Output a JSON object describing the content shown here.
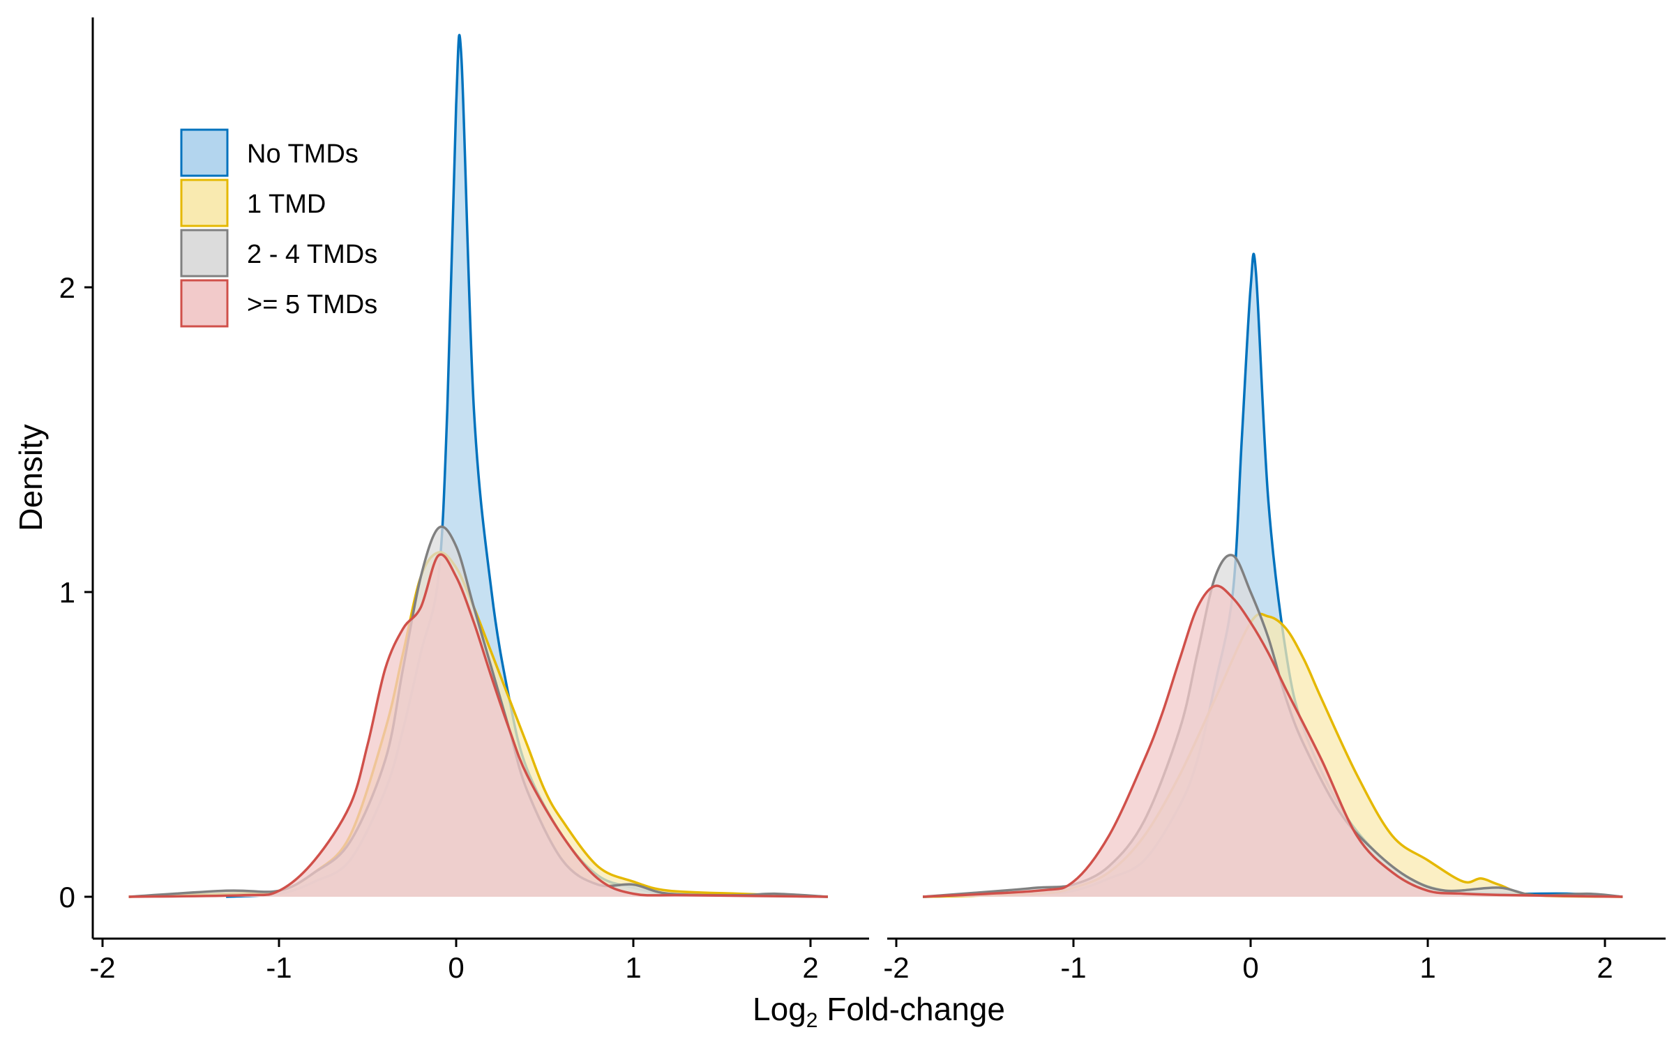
{
  "chart_data": [
    {
      "type": "area",
      "panel": "left",
      "xlim": [
        -2,
        2
      ],
      "ylim": [
        0,
        2.75
      ],
      "x_ticks": [
        -2,
        -1,
        0,
        1,
        2
      ],
      "y_ticks": [
        0,
        1,
        2
      ],
      "series": [
        {
          "name": "No TMDs",
          "color": "#0072BD",
          "fill": "#B3D5EE",
          "x": [
            -1.3,
            -1.0,
            -0.8,
            -0.6,
            -0.4,
            -0.3,
            -0.2,
            -0.1,
            -0.05,
            0.0,
            0.03,
            0.1,
            0.2,
            0.3,
            0.4,
            0.6,
            0.8,
            1.0,
            1.2,
            1.6,
            2.1
          ],
          "y": [
            0,
            0.01,
            0.05,
            0.12,
            0.35,
            0.55,
            0.8,
            1.05,
            1.6,
            2.6,
            2.75,
            1.6,
            1.0,
            0.65,
            0.42,
            0.2,
            0.07,
            0.03,
            0.01,
            0.005,
            0
          ]
        },
        {
          "name": "1 TMD",
          "color": "#E5B800",
          "fill": "#F9EAB0",
          "x": [
            -1.85,
            -1.3,
            -1.0,
            -0.8,
            -0.6,
            -0.4,
            -0.3,
            -0.2,
            -0.1,
            0.0,
            0.1,
            0.2,
            0.3,
            0.4,
            0.5,
            0.6,
            0.8,
            1.0,
            1.2,
            1.6,
            2.1
          ],
          "y": [
            0,
            0.01,
            0.02,
            0.08,
            0.2,
            0.55,
            0.8,
            1.05,
            1.13,
            1.08,
            0.95,
            0.8,
            0.65,
            0.5,
            0.35,
            0.25,
            0.1,
            0.05,
            0.02,
            0.01,
            0
          ]
        },
        {
          "name": "2 - 4 TMDs",
          "color": "#808080",
          "fill": "#DCDCDC",
          "x": [
            -1.85,
            -1.3,
            -1.0,
            -0.8,
            -0.6,
            -0.4,
            -0.3,
            -0.2,
            -0.1,
            0.0,
            0.1,
            0.2,
            0.3,
            0.4,
            0.6,
            0.8,
            1.0,
            1.2,
            1.6,
            1.8,
            2.1
          ],
          "y": [
            0,
            0.02,
            0.02,
            0.08,
            0.18,
            0.45,
            0.75,
            1.05,
            1.21,
            1.15,
            0.95,
            0.75,
            0.55,
            0.35,
            0.12,
            0.04,
            0.04,
            0.01,
            0.005,
            0.01,
            0
          ]
        },
        {
          "name": ">= 5 TMDs",
          "color": "#D0504A",
          "fill": "#F2CACA",
          "x": [
            -1.85,
            -1.2,
            -1.0,
            -0.8,
            -0.6,
            -0.5,
            -0.4,
            -0.3,
            -0.2,
            -0.1,
            0.0,
            0.1,
            0.2,
            0.3,
            0.4,
            0.6,
            0.8,
            1.0,
            1.3,
            2.1
          ],
          "y": [
            0,
            0.005,
            0.02,
            0.12,
            0.3,
            0.5,
            0.75,
            0.88,
            0.95,
            1.12,
            1.05,
            0.9,
            0.72,
            0.55,
            0.4,
            0.2,
            0.06,
            0.01,
            0.005,
            0
          ]
        }
      ]
    },
    {
      "type": "area",
      "panel": "right",
      "xlim": [
        -2,
        2
      ],
      "ylim": [
        0,
        2.75
      ],
      "x_ticks": [
        -2,
        -1,
        0,
        1,
        2
      ],
      "series": [
        {
          "name": "No TMDs",
          "color": "#0072BD",
          "fill": "#B3D5EE",
          "x": [
            -1.85,
            -1.2,
            -1.0,
            -0.8,
            -0.6,
            -0.4,
            -0.3,
            -0.2,
            -0.1,
            -0.05,
            0.0,
            0.03,
            0.1,
            0.2,
            0.3,
            0.5,
            0.7,
            0.9,
            1.1,
            1.4,
            1.8,
            2.1
          ],
          "y": [
            0,
            0.01,
            0.02,
            0.06,
            0.12,
            0.3,
            0.45,
            0.7,
            1.0,
            1.5,
            2.0,
            2.05,
            1.3,
            0.8,
            0.55,
            0.3,
            0.15,
            0.06,
            0.02,
            0.01,
            0.01,
            0
          ]
        },
        {
          "name": "1 TMD",
          "color": "#E5B800",
          "fill": "#F9EAB0",
          "x": [
            -1.85,
            -1.2,
            -1.0,
            -0.8,
            -0.6,
            -0.4,
            -0.2,
            0.0,
            0.1,
            0.2,
            0.3,
            0.4,
            0.6,
            0.8,
            1.0,
            1.2,
            1.3,
            1.4,
            1.6,
            2.1
          ],
          "y": [
            0,
            0.01,
            0.03,
            0.08,
            0.2,
            0.4,
            0.65,
            0.9,
            0.92,
            0.88,
            0.78,
            0.65,
            0.4,
            0.2,
            0.12,
            0.05,
            0.06,
            0.04,
            0.005,
            0
          ]
        },
        {
          "name": "2 - 4 TMDs",
          "color": "#808080",
          "fill": "#DCDCDC",
          "x": [
            -1.85,
            -1.4,
            -1.2,
            -1.0,
            -0.8,
            -0.6,
            -0.4,
            -0.3,
            -0.2,
            -0.1,
            0.0,
            0.1,
            0.2,
            0.3,
            0.5,
            0.7,
            0.9,
            1.1,
            1.4,
            1.6,
            1.9,
            2.1
          ],
          "y": [
            0,
            0.02,
            0.03,
            0.04,
            0.1,
            0.25,
            0.55,
            0.8,
            1.05,
            1.12,
            1.0,
            0.85,
            0.65,
            0.5,
            0.28,
            0.15,
            0.06,
            0.02,
            0.03,
            0.005,
            0.01,
            0
          ]
        },
        {
          "name": ">= 5 TMDs",
          "color": "#D0504A",
          "fill": "#F2CACA",
          "x": [
            -1.85,
            -1.2,
            -1.0,
            -0.8,
            -0.6,
            -0.5,
            -0.4,
            -0.3,
            -0.2,
            -0.1,
            0.0,
            0.1,
            0.2,
            0.4,
            0.6,
            0.8,
            1.0,
            1.2,
            1.5,
            2.1
          ],
          "y": [
            0,
            0.02,
            0.05,
            0.2,
            0.45,
            0.6,
            0.78,
            0.95,
            1.02,
            0.98,
            0.9,
            0.8,
            0.68,
            0.45,
            0.2,
            0.08,
            0.02,
            0.01,
            0.005,
            0
          ]
        }
      ]
    }
  ],
  "axes": {
    "ylabel": "Density",
    "xlabel_main": "Log",
    "xlabel_sub": "2",
    "xlabel_rest": " Fold-change",
    "y_tick_labels": [
      "0",
      "1",
      "2"
    ],
    "x_tick_labels": [
      "-2",
      "-1",
      "0",
      "1",
      "2"
    ]
  },
  "legend": {
    "placement": "top-left",
    "items": [
      {
        "label": "No TMDs",
        "color": "#0072BD",
        "fill": "#B3D5EE"
      },
      {
        "label": "1 TMD",
        "color": "#E5B800",
        "fill": "#F9EAB0"
      },
      {
        "label": "2 - 4 TMDs",
        "color": "#808080",
        "fill": "#DCDCDC"
      },
      {
        "label": ">= 5 TMDs",
        "color": "#D0504A",
        "fill": "#F2CACA"
      }
    ]
  }
}
